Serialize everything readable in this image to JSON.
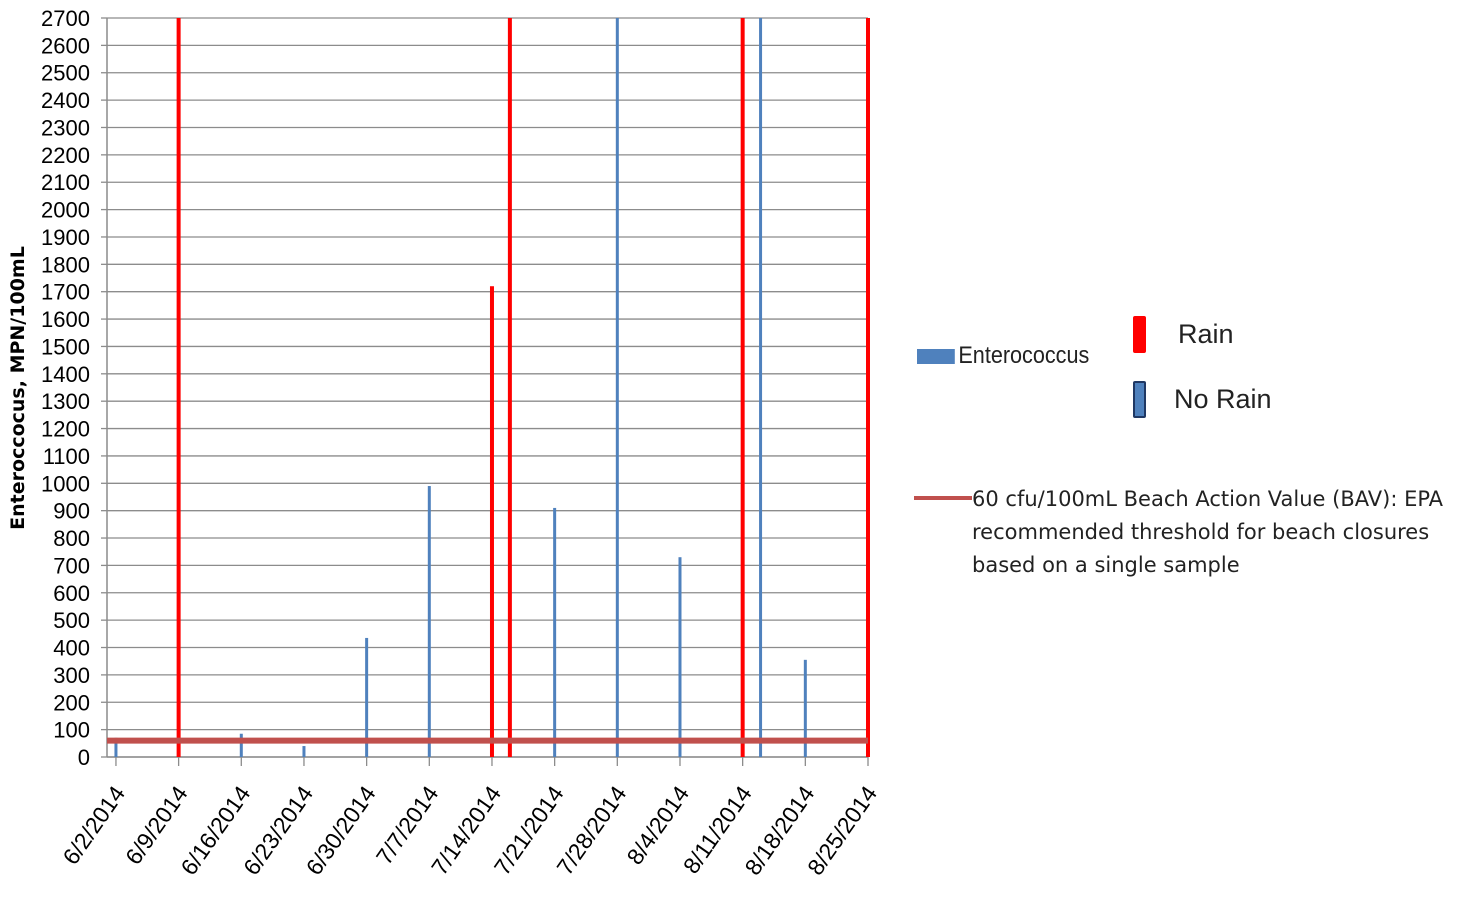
{
  "chart_data": {
    "type": "bar",
    "title": "",
    "ylabel": "Enteroccocus, MPN/100mL",
    "xlabel": "",
    "ylim": [
      0,
      2700
    ],
    "ytick_step": 100,
    "xlim": [
      "2014-06-01",
      "2014-08-25"
    ],
    "x_ticks": [
      "6/2/2014",
      "6/9/2014",
      "6/16/2014",
      "6/23/2014",
      "6/30/2014",
      "7/7/2014",
      "7/14/2014",
      "7/21/2014",
      "7/28/2014",
      "8/4/2014",
      "8/11/2014",
      "8/18/2014",
      "8/25/2014"
    ],
    "grid": true,
    "series": [
      {
        "name": "Enterococcus",
        "color": "#4f81bd",
        "points": [
          {
            "x": "2014-06-02",
            "y": 70,
            "rain": false
          },
          {
            "x": "2014-06-09",
            "y": 2700,
            "rain": true
          },
          {
            "x": "2014-06-16",
            "y": 85,
            "rain": false
          },
          {
            "x": "2014-06-23",
            "y": 40,
            "rain": false
          },
          {
            "x": "2014-06-30",
            "y": 435,
            "rain": false
          },
          {
            "x": "2014-07-07",
            "y": 990,
            "rain": false
          },
          {
            "x": "2014-07-14",
            "y": 1720,
            "rain": true
          },
          {
            "x": "2014-07-16",
            "y": 2700,
            "rain": true
          },
          {
            "x": "2014-07-21",
            "y": 910,
            "rain": false
          },
          {
            "x": "2014-07-28",
            "y": 2700,
            "rain": false
          },
          {
            "x": "2014-08-04",
            "y": 730,
            "rain": false
          },
          {
            "x": "2014-08-11",
            "y": 2700,
            "rain": true
          },
          {
            "x": "2014-08-13",
            "y": 2700,
            "rain": false
          },
          {
            "x": "2014-08-18",
            "y": 355,
            "rain": false
          },
          {
            "x": "2014-08-25",
            "y": 2700,
            "rain": true
          }
        ]
      }
    ],
    "threshold": {
      "value": 60,
      "color": "#c0504d",
      "label": "60 cfu/100mL Beach Action Value (BAV): EPA recommended threshold for beach closures based on a single sample"
    },
    "legend": {
      "rain_label": "Rain",
      "rain_color": "#ff0000",
      "norain_label": "No Rain",
      "norain_color": "#4f81bd",
      "placement": "right"
    }
  }
}
